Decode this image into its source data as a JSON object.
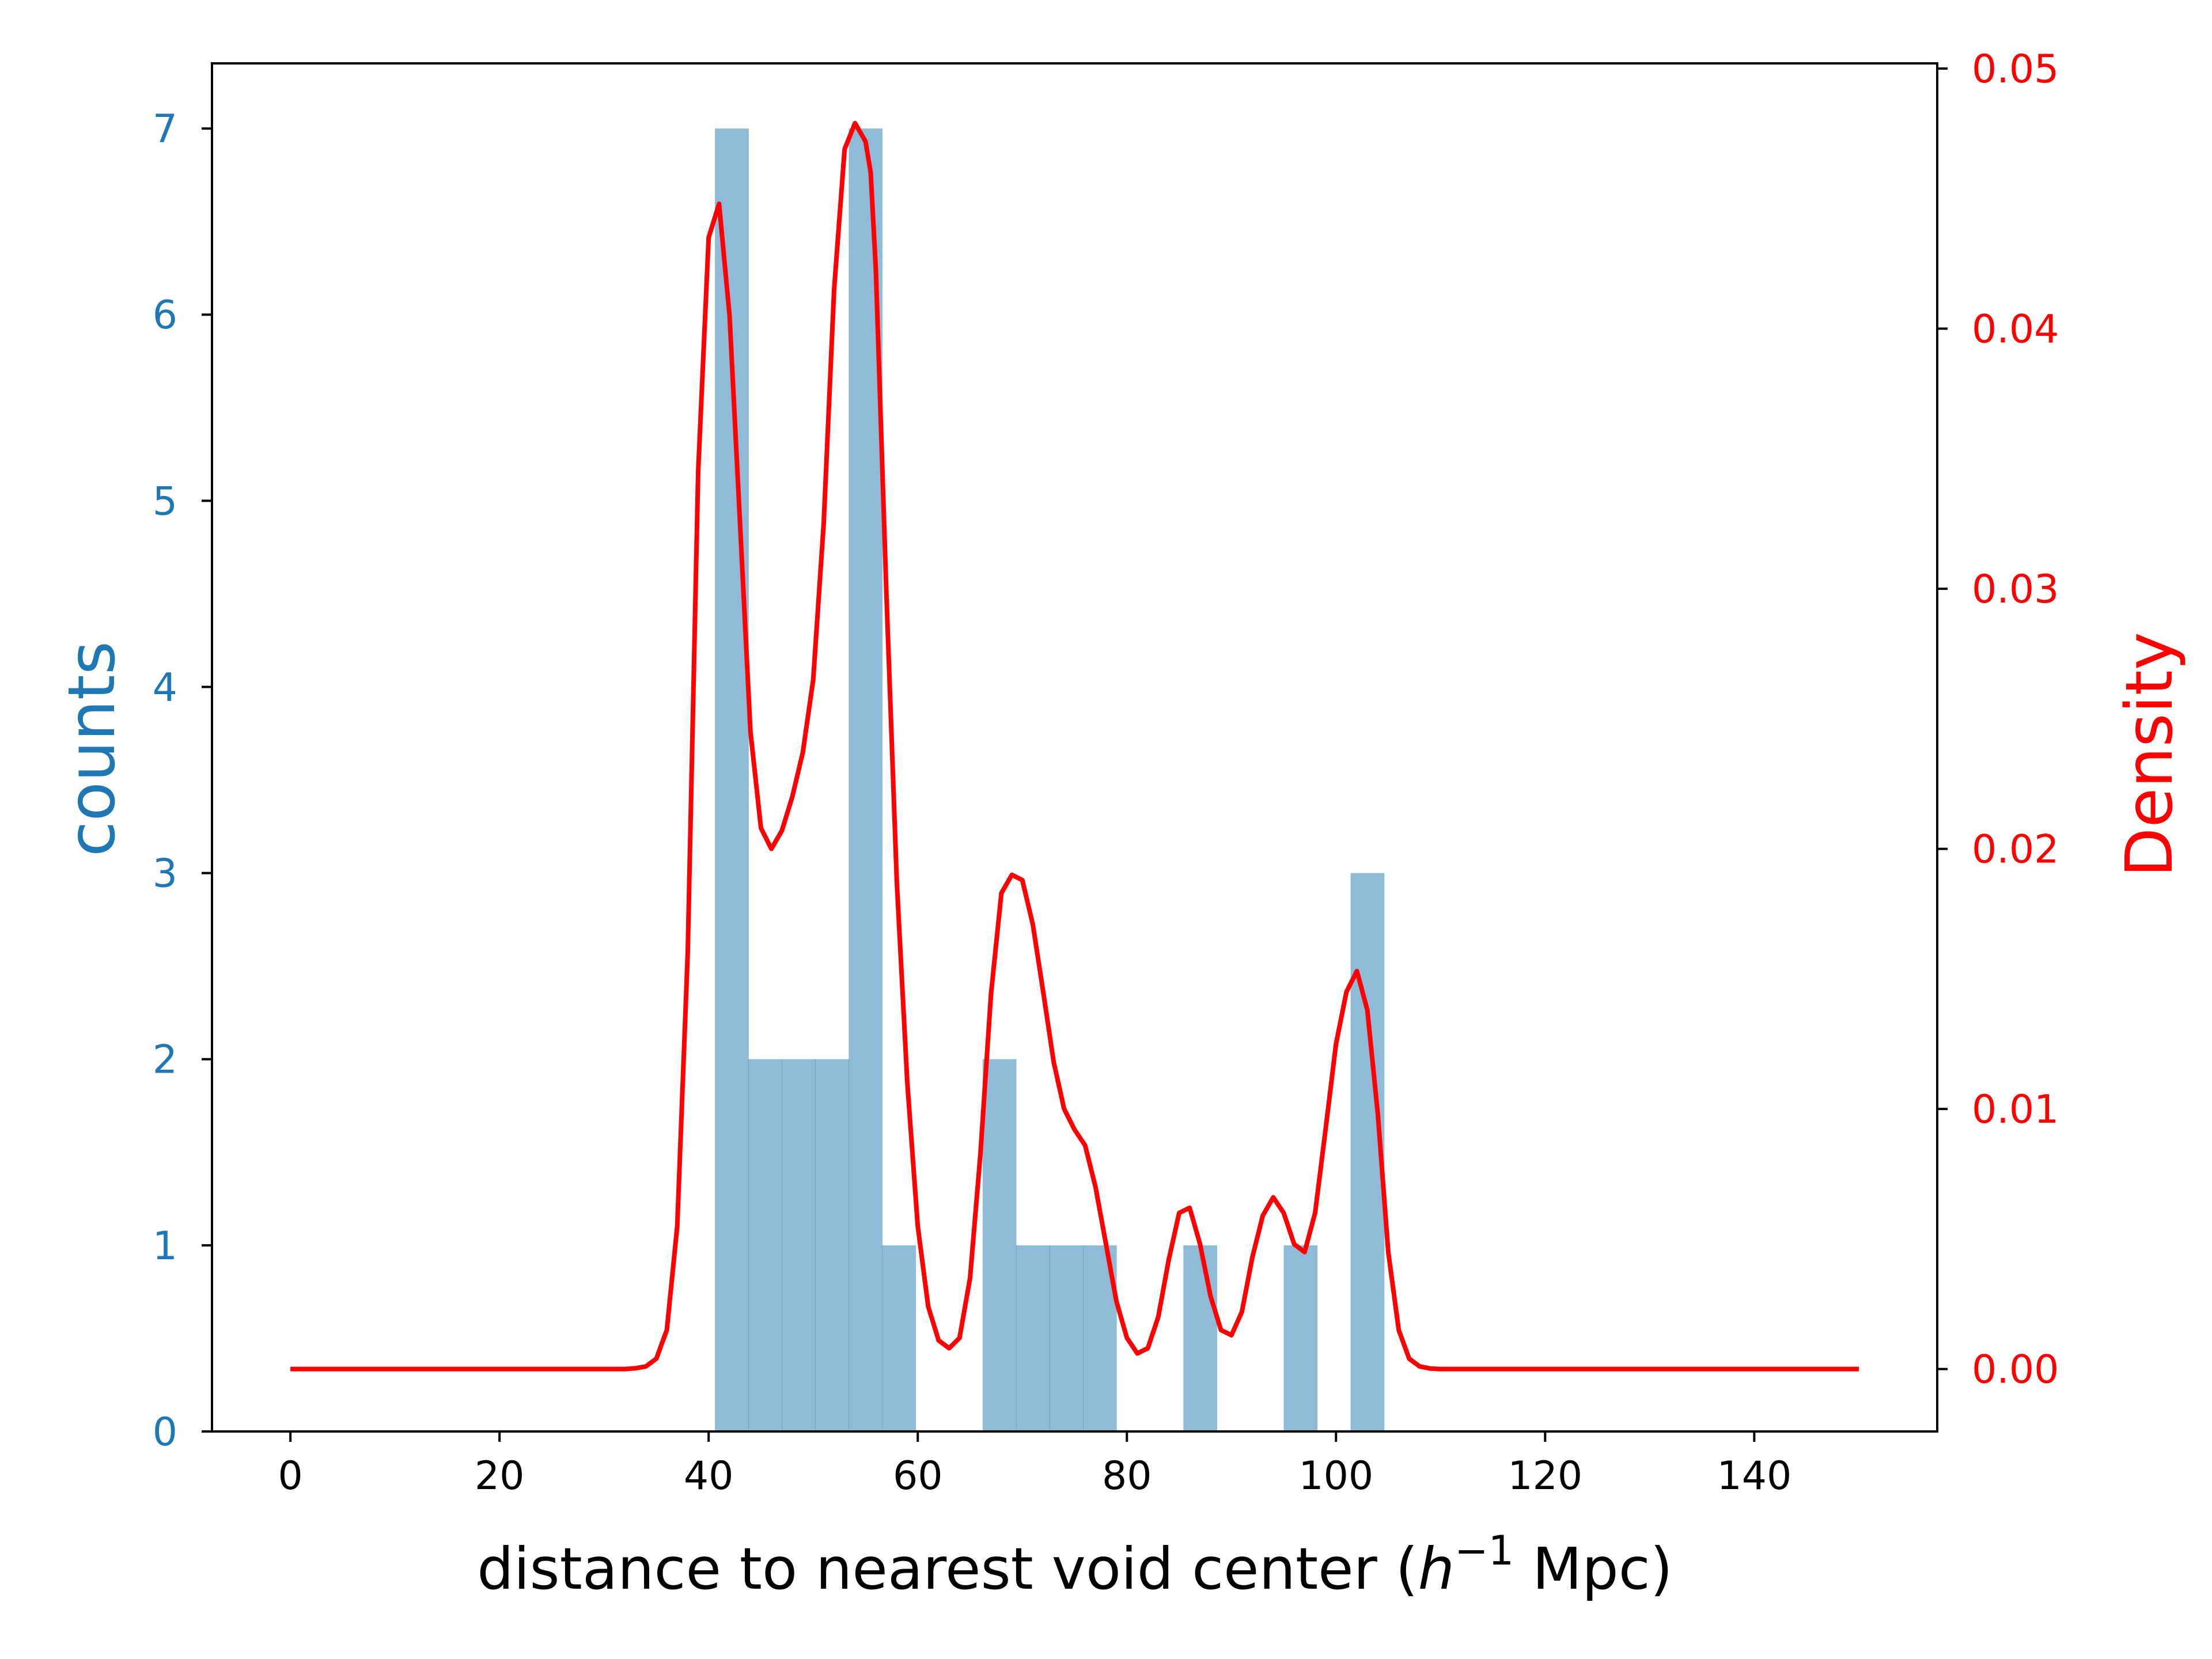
{
  "chart_data": {
    "type": "bar+line",
    "title": "",
    "xlabel": "distance to nearest void center (h⁻¹ Mpc)",
    "xlabel_parts": {
      "prefix": "distance to nearest void center (",
      "var": "h",
      "sup": "−1",
      "suffix": " Mpc)"
    },
    "ylabel_left": "counts",
    "ylabel_right": "Density",
    "xlim": [
      -7.5,
      157.5
    ],
    "ylim_left": [
      0,
      7.35
    ],
    "ylim_right": [
      -0.0024,
      0.0502
    ],
    "x_ticks": [
      0,
      20,
      40,
      60,
      80,
      100,
      120,
      140
    ],
    "x_tick_labels": [
      "0",
      "20",
      "40",
      "60",
      "80",
      "100",
      "120",
      "140"
    ],
    "y_left_ticks": [
      0,
      1,
      2,
      3,
      4,
      5,
      6,
      7
    ],
    "y_left_tick_labels": [
      "0",
      "1",
      "2",
      "3",
      "4",
      "5",
      "6",
      "7"
    ],
    "y_right_ticks": [
      0.0,
      0.01,
      0.02,
      0.03,
      0.04,
      0.05
    ],
    "y_right_tick_labels": [
      "0.00",
      "0.01",
      "0.02",
      "0.03",
      "0.04",
      "0.05"
    ],
    "grid": false,
    "histogram": {
      "color": "#1f77b4",
      "alpha": 0.5,
      "bin_edges": [
        40.6,
        43.8,
        47.0,
        50.2,
        53.4,
        56.6,
        59.8,
        63.0,
        66.2,
        69.4,
        72.6,
        75.8,
        79.0,
        82.2,
        85.4,
        88.6,
        91.8,
        95.0,
        98.2,
        101.4,
        104.6
      ],
      "counts": [
        7,
        2,
        2,
        2,
        7,
        1,
        0,
        0,
        2,
        1,
        1,
        1,
        0,
        0,
        1,
        0,
        0,
        1,
        0,
        3
      ]
    },
    "density_curve": {
      "color": "#ff0000",
      "x": [
        0,
        32,
        33,
        34,
        35,
        36,
        37,
        38,
        39,
        40,
        41,
        42,
        43,
        44,
        45,
        46,
        47,
        48,
        49,
        50,
        51,
        52,
        53,
        54,
        55,
        55.5,
        56,
        57,
        58,
        59,
        60,
        61,
        62,
        63,
        64,
        65,
        66,
        67,
        68,
        69,
        70,
        71,
        72,
        73,
        74,
        75,
        76,
        77,
        78,
        79,
        80,
        81,
        82,
        83,
        84,
        85,
        86,
        87,
        88,
        89,
        90,
        91,
        92,
        93,
        94,
        95,
        96,
        97,
        98,
        99,
        100,
        101,
        102,
        103,
        104,
        105,
        106,
        107,
        108,
        109,
        110,
        111,
        112,
        150
      ],
      "y": [
        0.0,
        0.0,
        3e-05,
        0.0001,
        0.0004,
        0.0015,
        0.0055,
        0.016,
        0.0345,
        0.0435,
        0.0448,
        0.0405,
        0.0325,
        0.0245,
        0.0208,
        0.02,
        0.0207,
        0.022,
        0.0237,
        0.0265,
        0.0325,
        0.0415,
        0.0469,
        0.0479,
        0.0472,
        0.046,
        0.0422,
        0.0298,
        0.0187,
        0.011,
        0.0055,
        0.0024,
        0.0011,
        0.0008,
        0.0012,
        0.0035,
        0.0083,
        0.0144,
        0.0183,
        0.019,
        0.0188,
        0.0171,
        0.0145,
        0.0118,
        0.01,
        0.0092,
        0.0086,
        0.007,
        0.0048,
        0.0026,
        0.0012,
        0.0006,
        0.0008,
        0.002,
        0.0042,
        0.006,
        0.0062,
        0.0048,
        0.0028,
        0.0015,
        0.0013,
        0.0022,
        0.0043,
        0.0059,
        0.0066,
        0.006,
        0.0048,
        0.0045,
        0.006,
        0.0092,
        0.0125,
        0.0145,
        0.0153,
        0.0138,
        0.0098,
        0.0045,
        0.0015,
        0.0004,
        0.0001,
        2e-05,
        0.0,
        0.0,
        0.0,
        0.0
      ]
    }
  }
}
